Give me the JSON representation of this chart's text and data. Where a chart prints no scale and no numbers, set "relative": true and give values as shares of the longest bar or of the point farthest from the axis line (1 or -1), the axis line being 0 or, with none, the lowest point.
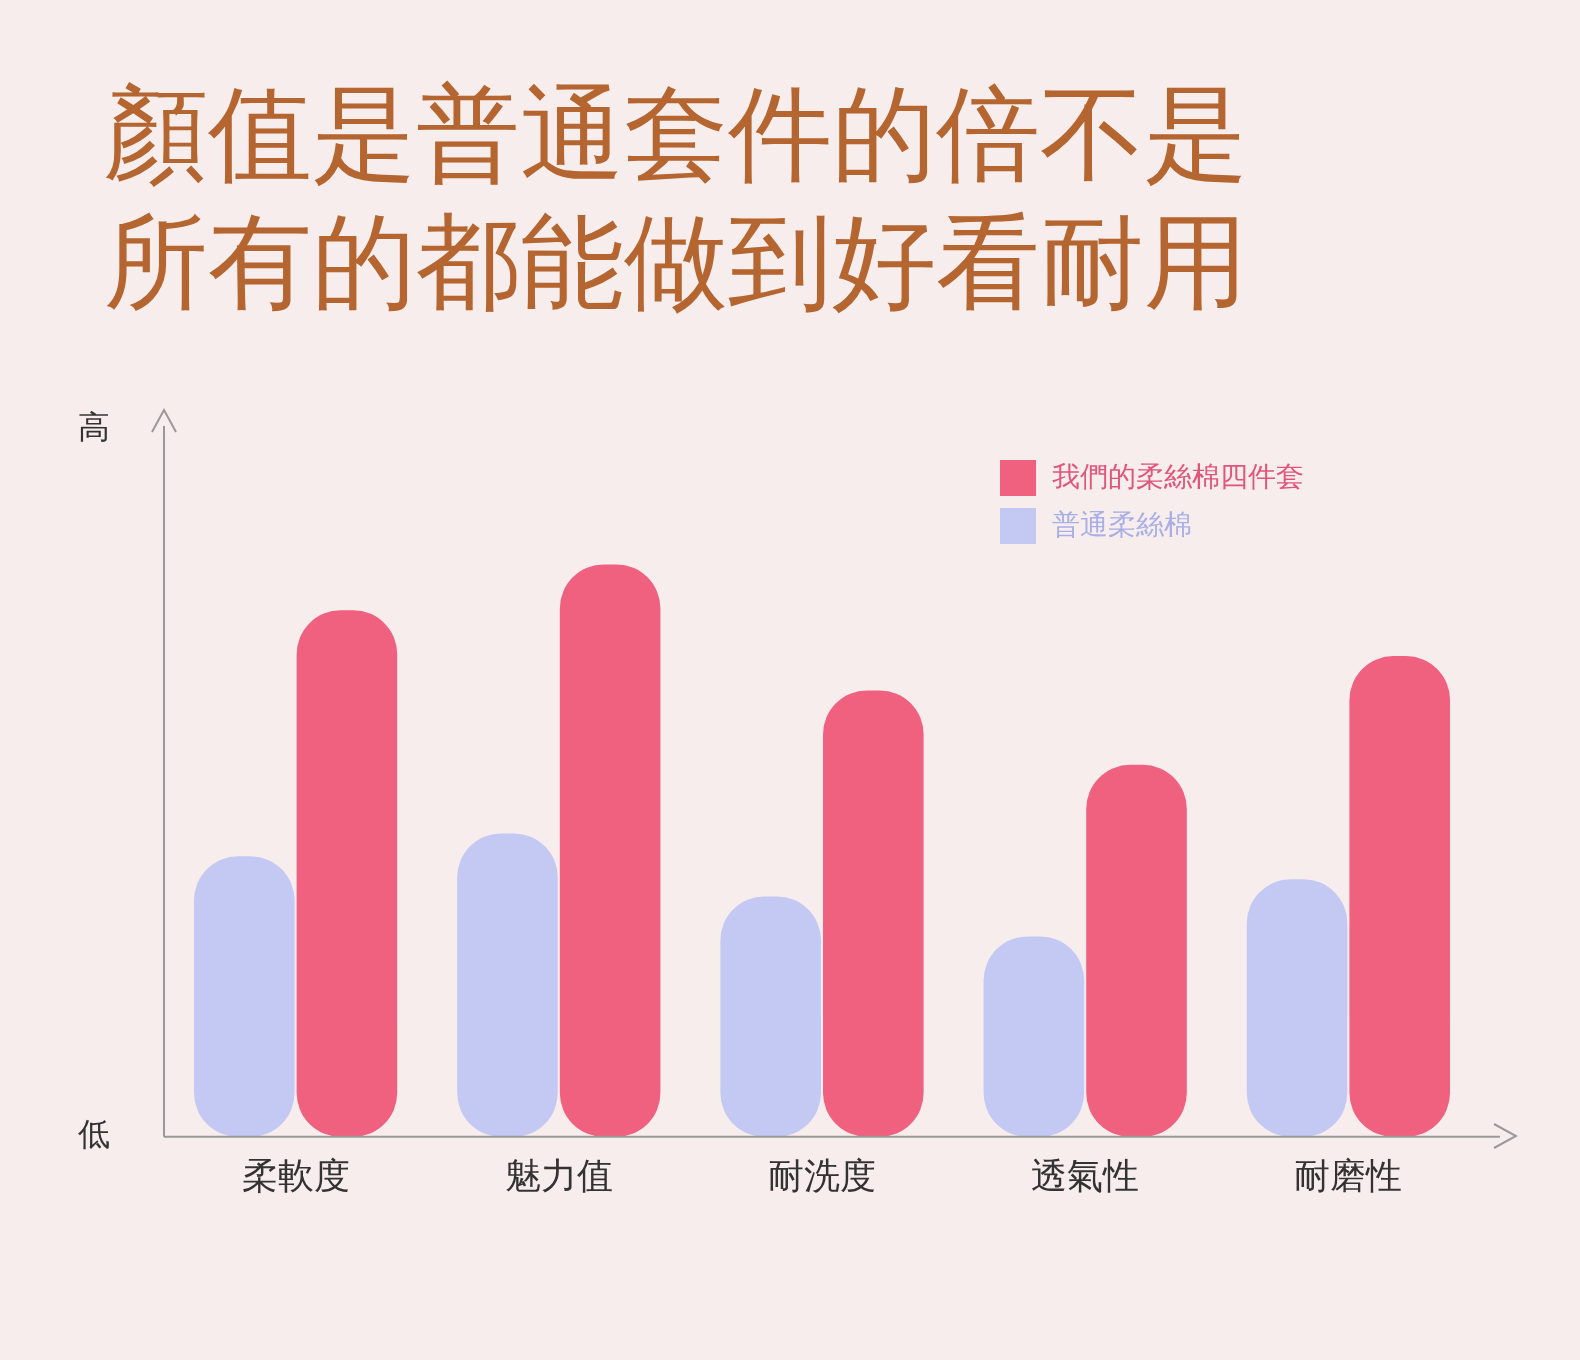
{
  "chart_data": {
    "type": "bar",
    "title": "顏值是普通套件的倍不是所有的都能做到好看耐用",
    "relative": true,
    "categories": [
      "柔軟度",
      "魅力值",
      "耐洗度",
      "透氣性",
      "耐磨性"
    ],
    "series": [
      {
        "name": "普通柔絲棉",
        "color": "#c3c9f3",
        "values": [
          0.49,
          0.53,
          0.42,
          0.35,
          0.45
        ]
      },
      {
        "name": "我們的柔絲棉四件套",
        "color": "#f0607f",
        "values": [
          0.92,
          1,
          0.78,
          0.65,
          0.84
        ]
      }
    ],
    "legend": "top right",
    "grid": false,
    "annotations": [
      "高",
      "低"
    ]
  }
}
